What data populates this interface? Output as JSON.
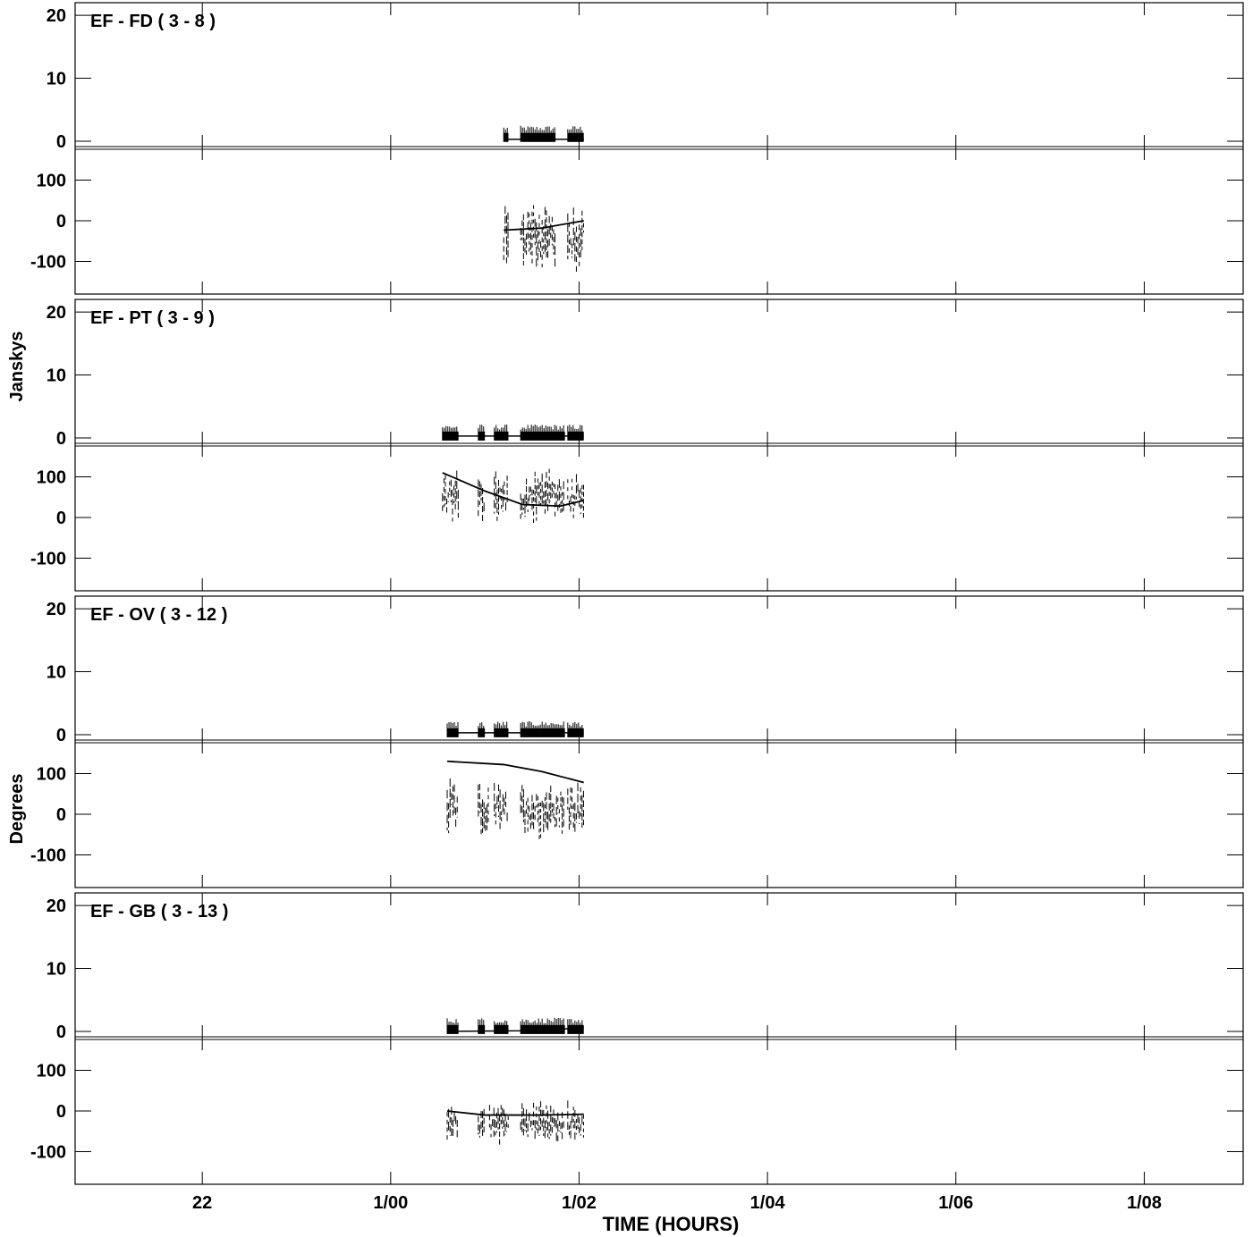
{
  "chart_data": {
    "type": "line",
    "ylabel_amplitude": "Janskys",
    "ylabel_phase": "Degrees",
    "xlabel": "TIME (HOURS)",
    "x_tick_labels": [
      "22",
      "1/00",
      "1/02",
      "1/04",
      "1/06",
      "1/08"
    ],
    "x_tick_hours": [
      22,
      24,
      26,
      28,
      30,
      32
    ],
    "xlim_hours": [
      20.65,
      33.05
    ],
    "amp_ylim": [
      -1,
      22
    ],
    "amp_ticks": [
      20,
      10,
      0
    ],
    "phase_ylim": [
      -180,
      180
    ],
    "phase_ticks": [
      100,
      0,
      -100
    ],
    "panels": [
      {
        "label": "EF - FD ( 3 - 8 )",
        "amp_segments": [
          [
            25.2,
            25.25
          ],
          [
            25.38,
            25.75
          ],
          [
            25.88,
            26.05
          ]
        ],
        "amp_value": 0.6,
        "model_amp": [
          [
            25.2,
            0.3
          ],
          [
            26.05,
            0.3
          ]
        ],
        "phase_segments": [
          [
            25.2,
            25.25
          ],
          [
            25.38,
            25.75
          ],
          [
            25.88,
            26.05
          ]
        ],
        "phase_center": -40,
        "phase_spread": 140,
        "model_phase": [
          [
            25.2,
            -23
          ],
          [
            25.6,
            -18
          ],
          [
            26.05,
            0
          ]
        ]
      },
      {
        "label": "EF - PT ( 3 - 9 )",
        "amp_segments": [
          [
            24.55,
            24.72
          ],
          [
            24.93,
            25.0
          ],
          [
            25.1,
            25.25
          ],
          [
            25.38,
            25.85
          ],
          [
            25.88,
            26.05
          ]
        ],
        "amp_value": 0.3,
        "model_amp": [
          [
            24.55,
            0.3
          ],
          [
            26.05,
            0.3
          ]
        ],
        "phase_segments": [
          [
            24.55,
            24.72
          ],
          [
            24.93,
            25.0
          ],
          [
            25.1,
            25.25
          ],
          [
            25.38,
            25.85
          ],
          [
            25.88,
            26.05
          ]
        ],
        "phase_center": 50,
        "phase_spread": 90,
        "model_phase": [
          [
            24.55,
            110
          ],
          [
            25.0,
            65
          ],
          [
            25.4,
            32
          ],
          [
            25.8,
            28
          ],
          [
            26.05,
            42
          ]
        ]
      },
      {
        "label": "EF - OV ( 3 - 12 )",
        "amp_segments": [
          [
            24.6,
            24.72
          ],
          [
            24.93,
            25.0
          ],
          [
            25.1,
            25.25
          ],
          [
            25.38,
            25.85
          ],
          [
            25.88,
            26.05
          ]
        ],
        "amp_value": 0.3,
        "model_amp": [
          [
            24.6,
            0.3
          ],
          [
            26.05,
            0.3
          ]
        ],
        "phase_segments": [
          [
            24.6,
            24.72
          ],
          [
            24.93,
            25.05
          ],
          [
            25.1,
            25.25
          ],
          [
            25.38,
            25.85
          ],
          [
            25.88,
            26.05
          ]
        ],
        "phase_center": 10,
        "phase_spread": 100,
        "model_phase": [
          [
            24.6,
            130
          ],
          [
            25.2,
            122
          ],
          [
            25.6,
            105
          ],
          [
            26.05,
            78
          ]
        ]
      },
      {
        "label": "EF - GB ( 3 - 13 )",
        "amp_segments": [
          [
            24.6,
            24.72
          ],
          [
            24.93,
            25.0
          ],
          [
            25.1,
            25.25
          ],
          [
            25.38,
            25.85
          ],
          [
            25.88,
            26.05
          ]
        ],
        "amp_value": 0.3,
        "model_amp": [
          [
            24.6,
            0.0
          ],
          [
            25.4,
            0.1
          ],
          [
            25.85,
            0.4
          ],
          [
            26.05,
            0.6
          ]
        ],
        "phase_segments": [
          [
            24.6,
            24.72
          ],
          [
            24.93,
            25.0
          ],
          [
            25.05,
            25.25
          ],
          [
            25.38,
            25.85
          ],
          [
            25.88,
            26.05
          ]
        ],
        "phase_center": -30,
        "phase_spread": 70,
        "model_phase": [
          [
            24.6,
            0
          ],
          [
            25.0,
            -10
          ],
          [
            25.6,
            -10
          ],
          [
            26.05,
            -8
          ]
        ]
      }
    ]
  }
}
